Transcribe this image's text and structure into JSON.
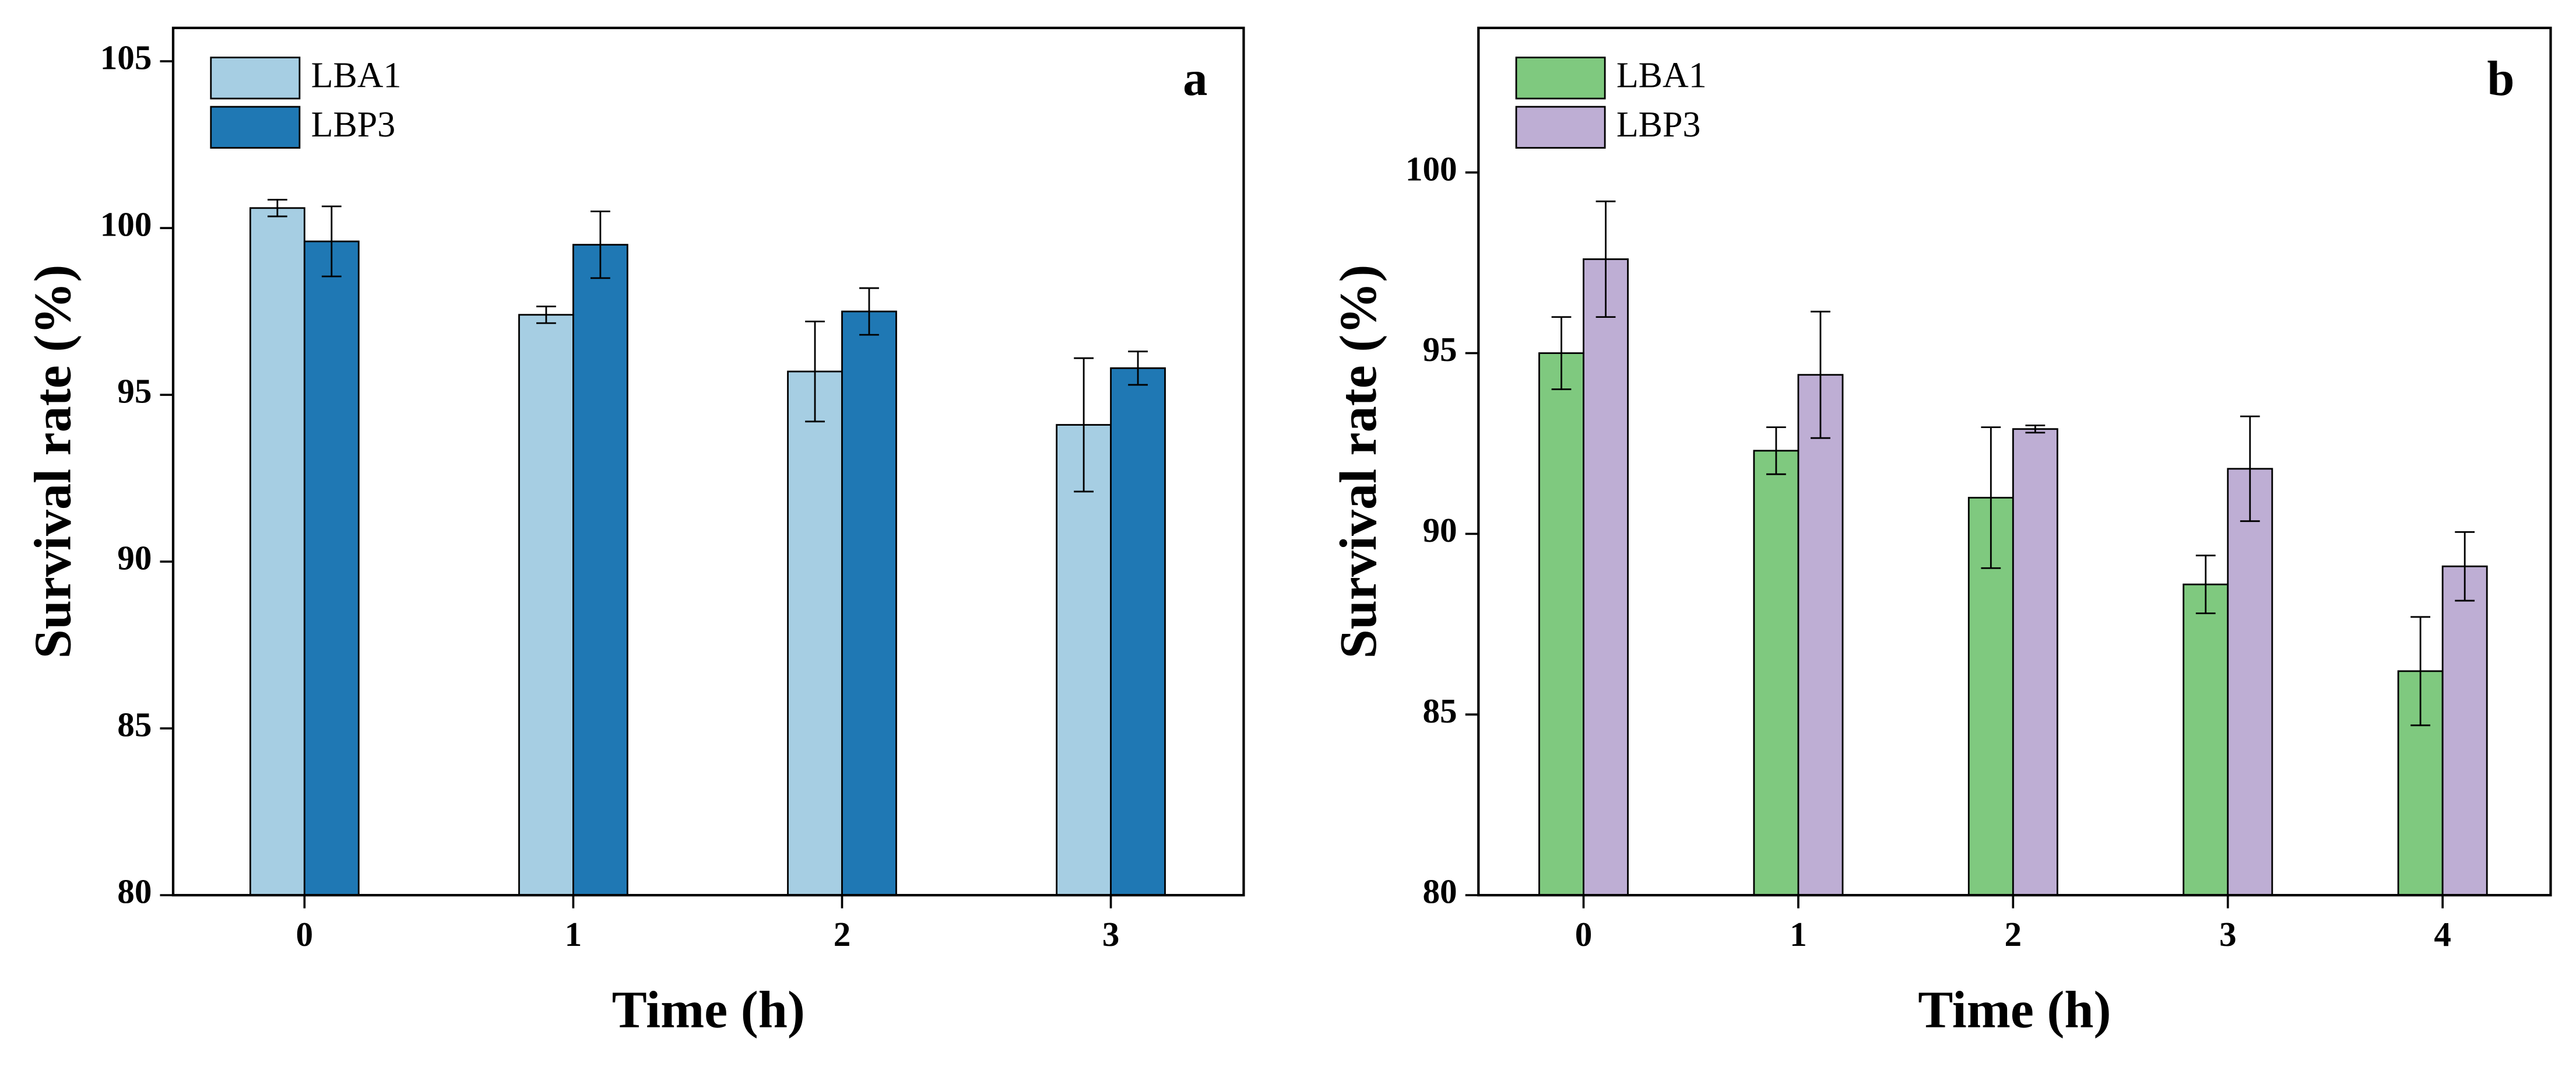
{
  "chart_data": [
    {
      "type": "bar",
      "panel_label": "a",
      "x_label": "Time (h)",
      "y_label": "Survival rate (%)",
      "categories": [
        "0",
        "1",
        "2",
        "3"
      ],
      "series": [
        {
          "name": "LBA1",
          "color": "#a6cee3",
          "values": [
            100.6,
            97.4,
            95.7,
            94.1
          ],
          "errors": [
            0.25,
            0.25,
            1.5,
            2.0
          ]
        },
        {
          "name": "LBP3",
          "color": "#1f78b4",
          "values": [
            99.6,
            99.5,
            97.5,
            95.8
          ],
          "errors": [
            1.05,
            1.0,
            0.7,
            0.5
          ]
        }
      ],
      "ylim": [
        80,
        106
      ],
      "yticks": [
        80,
        85,
        90,
        95,
        100,
        105
      ],
      "legend": "upper left"
    },
    {
      "type": "bar",
      "panel_label": "b",
      "x_label": "Time (h)",
      "y_label": "Survival rate (%)",
      "categories": [
        "0",
        "1",
        "2",
        "3",
        "4"
      ],
      "series": [
        {
          "name": "LBA1",
          "color": "#7fc97f",
          "values": [
            95.0,
            92.3,
            91.0,
            88.6,
            86.2
          ],
          "errors": [
            1.0,
            0.65,
            1.95,
            0.8,
            1.5
          ]
        },
        {
          "name": "LBP3",
          "color": "#beaed4",
          "values": [
            97.6,
            94.4,
            92.9,
            91.8,
            89.1
          ],
          "errors": [
            1.6,
            1.75,
            0.1,
            1.45,
            0.95
          ]
        }
      ],
      "ylim": [
        80,
        104
      ],
      "yticks": [
        80,
        85,
        90,
        95,
        100
      ],
      "legend": "upper left"
    }
  ]
}
